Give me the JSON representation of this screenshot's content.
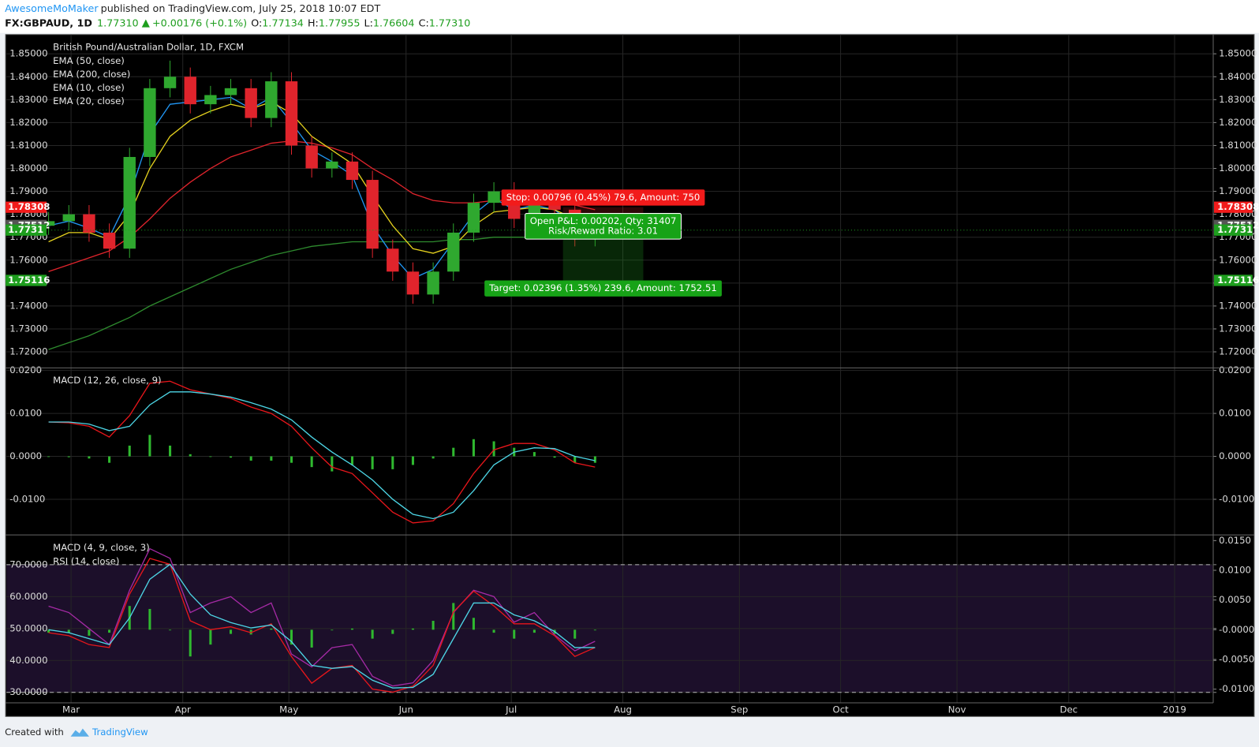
{
  "header": {
    "author": "AwesomeMoMaker",
    "published": "published on TradingView.com, July 25, 2018 10:07 EDT",
    "symbol": "FX:GBPAUD, 1D",
    "last": "1.77310",
    "change": "+0.00176 (+0.1%)",
    "ohlc": [
      {
        "label": "O:",
        "value": "1.77134"
      },
      {
        "label": "H:",
        "value": "1.77955"
      },
      {
        "label": "L:",
        "value": "1.76604"
      },
      {
        "label": "C:",
        "value": "1.77310"
      }
    ]
  },
  "footer": {
    "created": "Created with",
    "brand": "TradingView"
  },
  "chart_data": [
    {
      "type": "candlestick",
      "title": "British Pound/Australian Dollar, 1D, FXCM",
      "x": [
        0,
        1,
        2,
        3,
        4,
        5,
        6,
        7,
        8,
        9,
        10,
        11,
        12,
        13,
        14,
        15,
        16,
        17,
        18,
        19,
        20,
        21,
        22,
        23,
        24,
        25,
        26,
        27
      ],
      "xlim": [
        -0.1,
        57.5
      ],
      "ylim": [
        1.713,
        1.8584
      ],
      "yticks": [
        {
          "value": 1.72,
          "label": "1.72000"
        },
        {
          "value": 1.73,
          "label": "1.73000"
        },
        {
          "value": 1.74,
          "label": "1.74000"
        },
        {
          "value": 1.75,
          "label": "1.75000"
        },
        {
          "value": 1.76,
          "label": "1.76000"
        },
        {
          "value": 1.77,
          "label": "1.77000"
        },
        {
          "value": 1.78,
          "label": "1.78000"
        },
        {
          "value": 1.79,
          "label": "1.79000"
        },
        {
          "value": 1.8,
          "label": "1.80000"
        },
        {
          "value": 1.81,
          "label": "1.81000"
        },
        {
          "value": 1.82,
          "label": "1.82000"
        },
        {
          "value": 1.83,
          "label": "1.83000"
        },
        {
          "value": 1.84,
          "label": "1.84000"
        },
        {
          "value": 1.85,
          "label": "1.85000"
        }
      ],
      "grid": true,
      "up_color": "#2fa82f",
      "down_color": "#e0242c",
      "open": [
        1.775,
        1.777,
        1.78,
        1.772,
        1.765,
        1.805,
        1.835,
        1.84,
        1.828,
        1.832,
        1.835,
        1.822,
        1.838,
        1.81,
        1.8,
        1.803,
        1.795,
        1.765,
        1.755,
        1.745,
        1.755,
        1.772,
        1.785,
        1.79,
        1.778,
        1.785,
        1.782,
        1.77
      ],
      "high": [
        1.781,
        1.784,
        1.784,
        1.776,
        1.809,
        1.839,
        1.847,
        1.844,
        1.836,
        1.839,
        1.839,
        1.842,
        1.842,
        1.814,
        1.807,
        1.807,
        1.799,
        1.769,
        1.759,
        1.759,
        1.776,
        1.789,
        1.794,
        1.794,
        1.789,
        1.789,
        1.786,
        1.7796
      ],
      "low": [
        1.771,
        1.773,
        1.768,
        1.761,
        1.761,
        1.801,
        1.831,
        1.824,
        1.824,
        1.828,
        1.818,
        1.818,
        1.806,
        1.796,
        1.796,
        1.791,
        1.761,
        1.751,
        1.741,
        1.741,
        1.751,
        1.768,
        1.781,
        1.774,
        1.774,
        1.778,
        1.766,
        1.766
      ],
      "close": [
        1.777,
        1.78,
        1.772,
        1.765,
        1.805,
        1.835,
        1.84,
        1.828,
        1.832,
        1.835,
        1.822,
        1.838,
        1.81,
        1.8,
        1.803,
        1.795,
        1.765,
        1.755,
        1.745,
        1.755,
        1.772,
        1.785,
        1.79,
        1.778,
        1.785,
        1.782,
        1.77,
        1.773
      ],
      "series": [
        {
          "name": "EMA (50, close)",
          "color": "#e0242c",
          "values": [
            1.755,
            1.758,
            1.761,
            1.764,
            1.77,
            1.778,
            1.787,
            1.794,
            1.8,
            1.805,
            1.808,
            1.811,
            1.812,
            1.811,
            1.809,
            1.806,
            1.8,
            1.795,
            1.789,
            1.786,
            1.785,
            1.785,
            1.786,
            1.786,
            1.786,
            1.785,
            1.784,
            1.782
          ]
        },
        {
          "name": "EMA (200, close)",
          "color": "#2e8b2e",
          "values": [
            1.721,
            1.724,
            1.727,
            1.731,
            1.735,
            1.74,
            1.744,
            1.748,
            1.752,
            1.756,
            1.759,
            1.762,
            1.764,
            1.766,
            1.767,
            1.768,
            1.768,
            1.768,
            1.768,
            1.768,
            1.769,
            1.769,
            1.77,
            1.77,
            1.77,
            1.771,
            1.771,
            1.771
          ]
        },
        {
          "name": "EMA (10, close)",
          "color": "#2196f3",
          "values": [
            1.775,
            1.777,
            1.774,
            1.77,
            1.788,
            1.815,
            1.828,
            1.829,
            1.83,
            1.831,
            1.826,
            1.831,
            1.82,
            1.808,
            1.803,
            1.797,
            1.775,
            1.762,
            1.752,
            1.756,
            1.768,
            1.78,
            1.787,
            1.782,
            1.784,
            1.782,
            1.775,
            1.773
          ]
        },
        {
          "name": "EMA (20, close)",
          "color": "#e6d21e",
          "values": [
            1.768,
            1.772,
            1.772,
            1.769,
            1.78,
            1.8,
            1.814,
            1.821,
            1.825,
            1.828,
            1.826,
            1.829,
            1.824,
            1.814,
            1.808,
            1.802,
            1.788,
            1.775,
            1.765,
            1.763,
            1.766,
            1.775,
            1.781,
            1.782,
            1.783,
            1.782,
            1.778,
            1.776
          ]
        }
      ],
      "price_marks": [
        {
          "value": 1.78308,
          "color": "#f21b1b"
        },
        {
          "value": 1.77512,
          "color": "#555555"
        },
        {
          "value": 1.7731,
          "color": "#1e9e1e",
          "line": "dotted"
        },
        {
          "value": 1.75116,
          "color": "#1e9e1e"
        }
      ],
      "position": {
        "stop": 1.78308,
        "entry": 1.77512,
        "target": 1.75116,
        "stop_label": "Stop: 0.00796 (0.45%) 79.6, Amount: 750",
        "open_label": "Open P&L: 0.00202, Qty: 31407",
        "ratio_label": "Risk/Reward Ratio: 3.01",
        "target_label": "Target: 0.02396 (1.35%) 239.6, Amount: 1752.51"
      }
    },
    {
      "type": "line",
      "title": "MACD (12, 26, close, 9)",
      "x": [
        0,
        1,
        2,
        3,
        4,
        5,
        6,
        7,
        8,
        9,
        10,
        11,
        12,
        13,
        14,
        15,
        16,
        17,
        18,
        19,
        20,
        21,
        22,
        23,
        24,
        25,
        26,
        27
      ],
      "xlim": [
        -0.1,
        57.5
      ],
      "ylim": [
        -0.0183,
        0.0206
      ],
      "yticks": [
        {
          "value": -0.01,
          "label": "-0.0100"
        },
        {
          "value": 0,
          "label": "0.0000"
        },
        {
          "value": 0.01,
          "label": "0.0100"
        },
        {
          "value": 0.02,
          "label": "0.0200"
        }
      ],
      "grid": true,
      "series": [
        {
          "kind": "histogram",
          "color": "#2fb82f",
          "values": [
            0,
            -0.0002,
            -0.0005,
            -0.0015,
            0.0025,
            0.005,
            0.0025,
            0.0005,
            0,
            -0.0003,
            -0.001,
            -0.001,
            -0.0015,
            -0.0025,
            -0.0035,
            -0.002,
            -0.003,
            -0.003,
            -0.002,
            -0.0005,
            0.002,
            0.004,
            0.0035,
            0.002,
            0.001,
            -0.0003,
            -0.0015,
            -0.0015
          ]
        },
        {
          "kind": "line",
          "color": "#e8161b",
          "values": [
            0.008,
            0.0078,
            0.007,
            0.0045,
            0.0095,
            0.017,
            0.0175,
            0.0155,
            0.0145,
            0.0135,
            0.0115,
            0.01,
            0.007,
            0.002,
            -0.0025,
            -0.004,
            -0.0085,
            -0.013,
            -0.0155,
            -0.015,
            -0.011,
            -0.004,
            0.0015,
            0.003,
            0.003,
            0.0015,
            -0.0015,
            -0.0025
          ]
        },
        {
          "kind": "line",
          "color": "#4dd6e6",
          "values": [
            0.008,
            0.008,
            0.0075,
            0.006,
            0.007,
            0.012,
            0.015,
            0.015,
            0.0145,
            0.0138,
            0.0125,
            0.011,
            0.0085,
            0.0045,
            0.001,
            -0.002,
            -0.0055,
            -0.01,
            -0.0135,
            -0.0145,
            -0.013,
            -0.008,
            -0.002,
            0.001,
            0.002,
            0.0018,
            0,
            -0.001
          ]
        }
      ]
    },
    {
      "type": "line",
      "title": "MACD (4, 9, close, 3)",
      "x": [
        0,
        1,
        2,
        3,
        4,
        5,
        6,
        7,
        8,
        9,
        10,
        11,
        12,
        13,
        14,
        15,
        16,
        17,
        18,
        19,
        20,
        21,
        22,
        23,
        24,
        25,
        26,
        27
      ],
      "xlim": [
        -0.1,
        57.5
      ],
      "ylim": [
        26.73,
        79.31
      ],
      "y2lim": [
        -0.0123,
        0.01595
      ],
      "xticks": [
        {
          "value": 1.11,
          "label": "Mar"
        },
        {
          "value": 6.63,
          "label": "Apr"
        },
        {
          "value": 11.87,
          "label": "May"
        },
        {
          "value": 17.66,
          "label": "Jun"
        },
        {
          "value": 22.86,
          "label": "Jul"
        },
        {
          "value": 28.37,
          "label": "Aug"
        },
        {
          "value": 34.13,
          "label": "Sep"
        },
        {
          "value": 39.13,
          "label": "Oct"
        },
        {
          "value": 44.88,
          "label": "Nov"
        },
        {
          "value": 50.4,
          "label": "Dec"
        },
        {
          "value": 55.63,
          "label": "2019"
        }
      ],
      "yticks": [
        {
          "value": 30,
          "label": "30.0000"
        },
        {
          "value": 40,
          "label": "40.0000"
        },
        {
          "value": 50,
          "label": "50.0000"
        },
        {
          "value": 60,
          "label": "60.0000"
        },
        {
          "value": 70,
          "label": "70.0000"
        }
      ],
      "y2ticks": [
        {
          "value": -0.01,
          "label": "-0.0100"
        },
        {
          "value": -0.005,
          "label": "-0.0050"
        },
        {
          "value": 0,
          "label": "-0.0000"
        },
        {
          "value": 0.005,
          "label": "0.0050"
        },
        {
          "value": 0.01,
          "label": "0.0100"
        },
        {
          "value": 0.015,
          "label": "0.0150"
        }
      ],
      "grid": true,
      "band": [
        30,
        70
      ],
      "band_color": "#1c0f2a",
      "series": [
        {
          "kind": "histogram",
          "axis": "y2",
          "color": "#2fb82f",
          "values": [
            -0.0005,
            -0.0005,
            -0.001,
            -0.0005,
            0.004,
            0.0035,
            0,
            -0.0045,
            -0.0025,
            -0.0007,
            -0.0008,
            0.0002,
            -0.0025,
            -0.003,
            0,
            0.0002,
            -0.0015,
            -0.0007,
            0.0002,
            0.0015,
            0.0045,
            0.002,
            -0.0005,
            -0.0015,
            -0.0005,
            -0.0007,
            -0.0015,
            0
          ]
        },
        {
          "name": "RSI (14, close)",
          "kind": "line",
          "color": "#a52aa5",
          "values": [
            57,
            55,
            50,
            45,
            62,
            75,
            72,
            55,
            58,
            60,
            55,
            58,
            42,
            38,
            44,
            45,
            35,
            32,
            33,
            40,
            55,
            62,
            60,
            52,
            55,
            48,
            43,
            46
          ]
        },
        {
          "kind": "line",
          "axis": "y2",
          "color": "#e8161b",
          "values": [
            -0.0005,
            -0.001,
            -0.0025,
            -0.003,
            0.006,
            0.012,
            0.011,
            0.0015,
            0,
            0.0005,
            -0.0005,
            0.001,
            -0.0045,
            -0.009,
            -0.0065,
            -0.006,
            -0.01,
            -0.0105,
            -0.0095,
            -0.006,
            0.003,
            0.0065,
            0.004,
            0.001,
            0.001,
            -0.001,
            -0.0045,
            -0.003
          ]
        },
        {
          "kind": "line",
          "axis": "y2",
          "color": "#4dd6e6",
          "values": [
            0,
            -0.0005,
            -0.0015,
            -0.0025,
            0.002,
            0.0085,
            0.011,
            0.006,
            0.0025,
            0.0012,
            0.0003,
            0.0008,
            -0.002,
            -0.006,
            -0.0065,
            -0.0062,
            -0.0085,
            -0.0098,
            -0.0097,
            -0.0075,
            -0.0015,
            0.0045,
            0.0045,
            0.0025,
            0.0015,
            -0.0003,
            -0.003,
            -0.003
          ]
        }
      ]
    }
  ]
}
